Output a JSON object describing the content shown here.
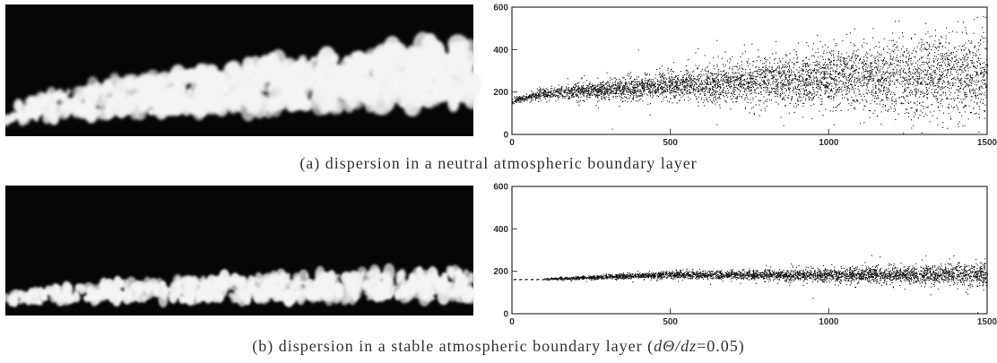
{
  "charts": [
    {
      "id": "a",
      "caption": "(a)  dispersion in a neutral atmospheric boundary layer",
      "chart_data": {
        "type": "scatter",
        "xlim": [
          0,
          1500
        ],
        "ylim": [
          0,
          600
        ],
        "x_ticks": [
          "0",
          "500",
          "1000",
          "1500"
        ],
        "y_ticks": [
          "0",
          "200",
          "400",
          "600"
        ],
        "grid": false,
        "plume": {
          "x": [
            0,
            100,
            250,
            500,
            750,
            1000,
            1250,
            1500
          ],
          "center": [
            160,
            195,
            210,
            230,
            250,
            265,
            275,
            285
          ],
          "spread": [
            8,
            15,
            25,
            40,
            60,
            85,
            110,
            135
          ]
        }
      }
    },
    {
      "id": "b",
      "caption_prefix": "(b)  dispersion in a stable atmospheric boundary layer  (",
      "caption_math": "dΘ/dz",
      "caption_suffix": "=0.05)",
      "chart_data": {
        "type": "scatter",
        "xlim": [
          0,
          1500
        ],
        "ylim": [
          0,
          600
        ],
        "x_ticks": [
          "0",
          "500",
          "1000",
          "1500"
        ],
        "y_ticks": [
          "0",
          "200",
          "400",
          "600"
        ],
        "grid": false,
        "plume": {
          "x": [
            100,
            200,
            500,
            750,
            1000,
            1250,
            1500
          ],
          "center": [
            165,
            170,
            185,
            185,
            185,
            185,
            185
          ],
          "spread": [
            3,
            5,
            10,
            14,
            20,
            25,
            32
          ]
        }
      }
    }
  ]
}
